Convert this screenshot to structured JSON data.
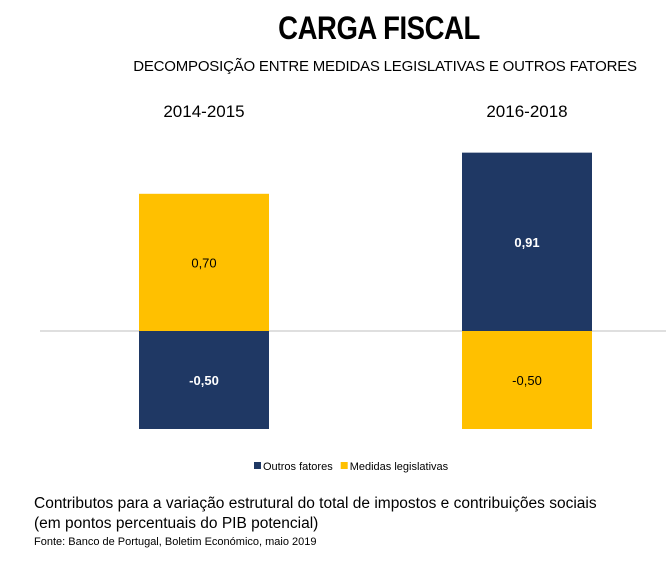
{
  "header": {
    "title": "CARGA FISCAL",
    "subtitle": "DECOMPOSIÇÃO ENTRE MEDIDAS LEGISLATIVAS E OUTROS FATORES"
  },
  "colors": {
    "outros_fatores": "#1f3864",
    "medidas_legislativas": "#ffc000",
    "baseline": "#bfbfbf"
  },
  "chart_data": {
    "type": "bar",
    "stacked": true,
    "categories": [
      "2014-2015",
      "2016-2018"
    ],
    "series": [
      {
        "name": "Outros fatores",
        "values": [
          -0.5,
          0.91
        ],
        "labels": [
          "-0,50",
          "0,91"
        ]
      },
      {
        "name": "Medidas legislativas",
        "values": [
          0.7,
          -0.5
        ],
        "labels": [
          "0,70",
          "-0,50"
        ]
      }
    ],
    "ylim": [
      -0.6,
      1.05
    ],
    "grid": false,
    "legend": "bottom"
  },
  "caption": {
    "line1": "Contributos para a variação estrutural do total de impostos e contribuições sociais",
    "line2": "(em pontos percentuais do PIB potencial)",
    "source": "Fonte: Banco de Portugal, Boletim Económico, maio 2019"
  }
}
